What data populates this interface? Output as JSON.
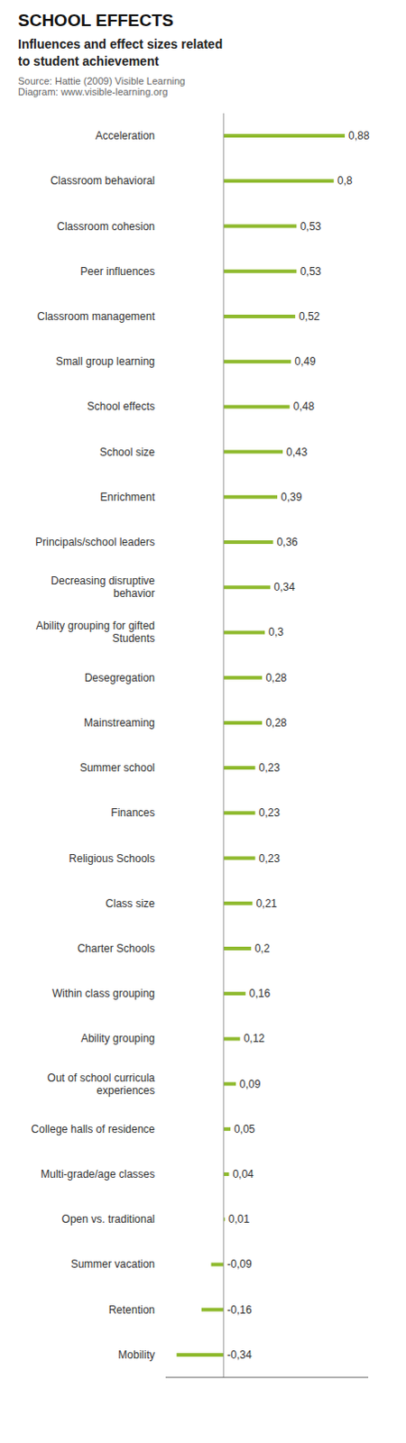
{
  "chart_data": {
    "type": "bar",
    "orientation": "horizontal",
    "title": "SCHOOL EFFECTS",
    "subtitle": "Influences and effect sizes related\nto student achievement",
    "annotations": [
      "Source: Hattie (2009) Visible Learning",
      "Diagram: www.visible-learning.org"
    ],
    "categories": [
      "Acceleration",
      "Classroom behavioral",
      "Classroom cohesion",
      "Peer influences",
      "Classroom management",
      "Small group learning",
      "School effects",
      "School size",
      "Enrichment",
      "Principals/school leaders",
      "Decreasing disruptive\nbehavior",
      "Ability grouping for gifted\nStudents",
      "Desegregation",
      "Mainstreaming",
      "Summer school",
      "Finances",
      "Religious Schools",
      "Class size",
      "Charter Schools",
      "Within class grouping",
      "Ability grouping",
      "Out of school curricula\nexperiences",
      "College halls of residence",
      "Multi-grade/age classes",
      "Open vs. traditional",
      "Summer vacation",
      "Retention",
      "Mobility"
    ],
    "values": [
      0.88,
      0.8,
      0.53,
      0.53,
      0.52,
      0.49,
      0.48,
      0.43,
      0.39,
      0.36,
      0.34,
      0.3,
      0.28,
      0.28,
      0.23,
      0.23,
      0.23,
      0.21,
      0.2,
      0.16,
      0.12,
      0.09,
      0.05,
      0.04,
      0.01,
      -0.09,
      -0.16,
      -0.34
    ],
    "value_labels": [
      "0,88",
      "0,8",
      "0,53",
      "0,53",
      "0,52",
      "0,49",
      "0,48",
      "0,43",
      "0,39",
      "0,36",
      "0,34",
      "0,3",
      "0,28",
      "0,28",
      "0,23",
      "0,23",
      "0,23",
      "0,21",
      "0,2",
      "0,16",
      "0,12",
      "0,09",
      "0,05",
      "0,04",
      "0,01",
      "-0,09",
      "-0,16",
      "-0,34"
    ],
    "data_labels": true,
    "color": "#8fba2e",
    "xlim": [
      -0.42,
      1.05
    ],
    "tick_labels": "y",
    "grid": false
  }
}
